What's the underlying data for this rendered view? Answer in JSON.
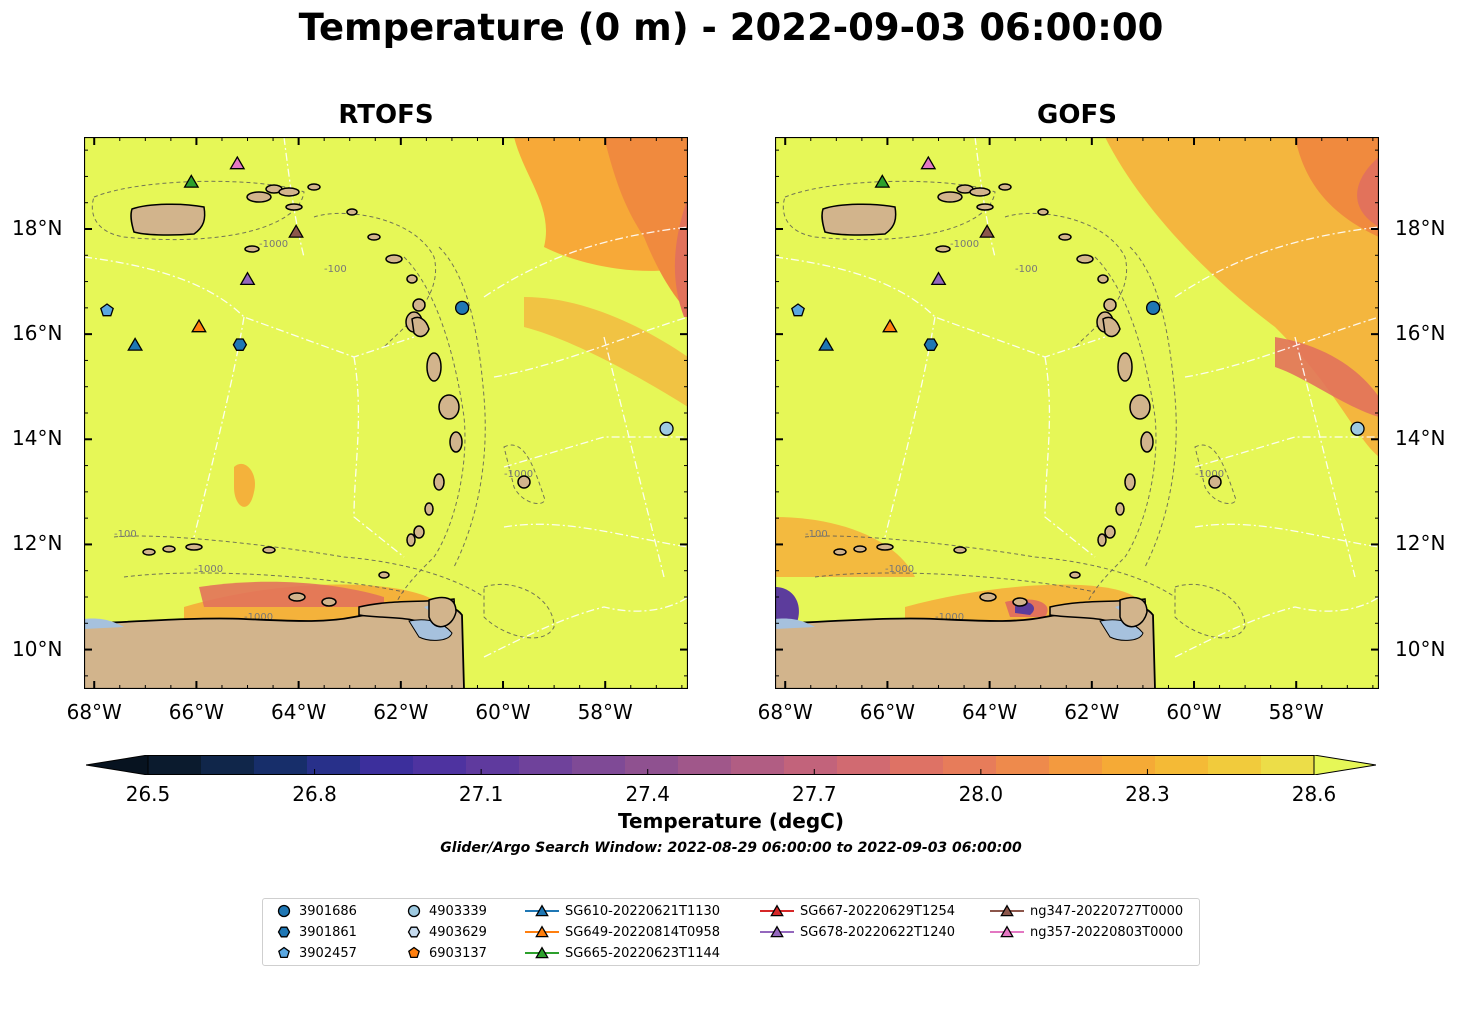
{
  "figure": {
    "title": "Temperature (0 m) - 2022-09-03 06:00:00",
    "panels": [
      {
        "title": "RTOFS"
      },
      {
        "title": "GOFS"
      }
    ],
    "axes": {
      "x_ticks": [
        "68°W",
        "66°W",
        "64°W",
        "62°W",
        "60°W",
        "58°W"
      ],
      "y_ticks": [
        "18°N",
        "16°N",
        "14°N",
        "12°N",
        "10°N"
      ]
    },
    "colorbar": {
      "label": "Temperature (degC)",
      "ticks": [
        "26.5",
        "26.8",
        "27.1",
        "27.4",
        "27.7",
        "28.0",
        "28.3",
        "28.6"
      ],
      "min": 26.5,
      "max": 28.6,
      "extend": "both"
    },
    "search_window": "Glider/Argo Search Window: 2022-08-29 06:00:00 to 2022-09-03 06:00:00",
    "contour_labels": [
      "-100",
      "-1000"
    ]
  },
  "colors": {
    "land": "#d2b48c",
    "ocean_base": "#e6f757",
    "orange": "#f8a035",
    "warm": "#e2725b",
    "purple": "#5c3c9c",
    "lake": "#a6c1dd"
  },
  "legend": [
    {
      "label": "3901686",
      "marker": "circle",
      "color": "#1f77b4"
    },
    {
      "label": "3901861",
      "marker": "hexagon",
      "color": "#1f77b4"
    },
    {
      "label": "3902457",
      "marker": "pentagon",
      "color": "#5aa7e0"
    },
    {
      "label": "4903339",
      "marker": "circle",
      "color": "#9ecae1"
    },
    {
      "label": "4903629",
      "marker": "hexagon",
      "color": "#c6dbef"
    },
    {
      "label": "6903137",
      "marker": "pentagon",
      "color": "#ff7f0e"
    },
    {
      "label": "SG610-20220621T1130",
      "marker": "triangle",
      "color": "#1f77b4"
    },
    {
      "label": "SG649-20220814T0958",
      "marker": "triangle",
      "color": "#ff7f0e"
    },
    {
      "label": "SG665-20220623T1144",
      "marker": "triangle",
      "color": "#2ca02c"
    },
    {
      "label": "SG667-20220629T1254",
      "marker": "triangle",
      "color": "#d62728"
    },
    {
      "label": "SG678-20220622T1240",
      "marker": "triangle",
      "color": "#9467bd"
    },
    {
      "label": "ng347-20220727T0000",
      "marker": "triangle",
      "color": "#8c564b"
    },
    {
      "label": "ng357-20220803T0000",
      "marker": "triangle",
      "color": "#e377c2"
    }
  ],
  "observations": [
    {
      "id": "SG665-20220623T1144",
      "lon": -66.1,
      "lat": 18.9
    },
    {
      "id": "ng357-20220803T0000",
      "lon": -65.2,
      "lat": 19.25
    },
    {
      "id": "ng347-20220727T0000",
      "lon": -64.05,
      "lat": 17.95
    },
    {
      "id": "SG678-20220622T1240",
      "lon": -65.0,
      "lat": 17.05
    },
    {
      "id": "3902457",
      "lon": -67.75,
      "lat": 16.45
    },
    {
      "id": "SG649-20220814T0958",
      "lon": -65.95,
      "lat": 16.15
    },
    {
      "id": "SG610-20220621T1130",
      "lon": -67.2,
      "lat": 15.8
    },
    {
      "id": "3901861",
      "lon": -65.15,
      "lat": 15.8
    },
    {
      "id": "3901686",
      "lon": -60.8,
      "lat": 16.5
    },
    {
      "id": "4903339",
      "lon": -56.8,
      "lat": 14.2
    }
  ]
}
